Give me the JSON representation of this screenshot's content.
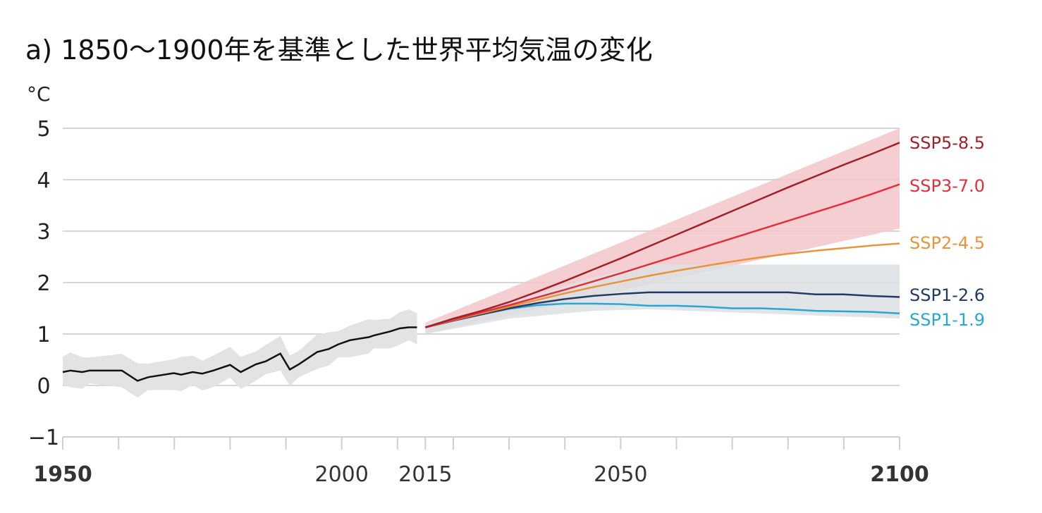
{
  "chart_data": {
    "type": "line",
    "title": "a) 1850～1900年を基準とした世界平均気温の変化",
    "ylabel": "°C",
    "xlabel": "",
    "xlim": [
      1950,
      2100
    ],
    "ylim": [
      -1,
      5
    ],
    "yticks": [
      -1,
      0,
      1,
      2,
      3,
      4,
      5
    ],
    "ytick_labels": [
      "−1",
      "0",
      "1",
      "2",
      "3",
      "4",
      "5"
    ],
    "xticks_labeled": [
      1950,
      2000,
      2015,
      2050,
      2100
    ],
    "xticks_minor": [
      1960,
      1970,
      1980,
      1990,
      2010,
      2020,
      2030,
      2040,
      2060,
      2070,
      2080,
      2090
    ],
    "grid": true,
    "historical": {
      "color": "#111111",
      "band_color": "#e3e3e3",
      "x": [
        1950,
        1951.4,
        1953.5,
        1954.8,
        1960.6,
        1963.4,
        1965.3,
        1969.9,
        1971.2,
        1973.3,
        1975,
        1977,
        1980,
        1981.9,
        1984.6,
        1986.4,
        1989,
        1990.7,
        1992.3,
        1995.6,
        1997.7,
        1999.4,
        2001.5,
        2004.9,
        2005.7,
        2008.7,
        2010.4,
        2012,
        2013.5
      ],
      "y": [
        0.26,
        0.29,
        0.26,
        0.29,
        0.29,
        0.09,
        0.16,
        0.24,
        0.21,
        0.26,
        0.23,
        0.29,
        0.4,
        0.26,
        0.41,
        0.47,
        0.62,
        0.31,
        0.41,
        0.65,
        0.71,
        0.8,
        0.88,
        0.94,
        0.97,
        1.05,
        1.11,
        1.13,
        1.13
      ],
      "band_halfwidth": 0.3
    },
    "projection_x": [
      2015,
      2020,
      2025,
      2030,
      2035,
      2040,
      2045,
      2050,
      2055,
      2060,
      2065,
      2070,
      2075,
      2080,
      2085,
      2090,
      2095,
      2100
    ],
    "series": [
      {
        "name": "SSP5-8.5",
        "color": "#a3202a",
        "values": [
          1.13,
          1.3,
          1.45,
          1.62,
          1.82,
          2.03,
          2.25,
          2.47,
          2.7,
          2.93,
          3.16,
          3.39,
          3.62,
          3.85,
          4.07,
          4.29,
          4.5,
          4.72
        ]
      },
      {
        "name": "SSP3-7.0",
        "color": "#e0303a",
        "values": [
          1.13,
          1.28,
          1.42,
          1.56,
          1.71,
          1.86,
          2.02,
          2.18,
          2.35,
          2.52,
          2.69,
          2.86,
          3.03,
          3.2,
          3.37,
          3.54,
          3.72,
          3.91
        ]
      },
      {
        "name": "SSP2-4.5",
        "color": "#e8943a",
        "values": [
          1.13,
          1.27,
          1.4,
          1.53,
          1.66,
          1.79,
          1.91,
          2.02,
          2.13,
          2.23,
          2.32,
          2.41,
          2.49,
          2.56,
          2.62,
          2.67,
          2.72,
          2.76
        ]
      },
      {
        "name": "SSP1-2.6",
        "color": "#233a63",
        "values": [
          1.13,
          1.26,
          1.38,
          1.5,
          1.6,
          1.68,
          1.74,
          1.78,
          1.81,
          1.81,
          1.81,
          1.81,
          1.81,
          1.81,
          1.77,
          1.77,
          1.74,
          1.72
        ]
      },
      {
        "name": "SSP1-1.9",
        "color": "#2aa6d0",
        "values": [
          1.13,
          1.26,
          1.38,
          1.49,
          1.56,
          1.59,
          1.59,
          1.58,
          1.55,
          1.55,
          1.53,
          1.5,
          1.5,
          1.48,
          1.45,
          1.44,
          1.43,
          1.4
        ]
      }
    ],
    "bands": [
      {
        "color": "#f3c6ca",
        "x": [
          2015,
          2100
        ],
        "low": [
          1.0,
          3.05
        ],
        "high": [
          1.22,
          5.0
        ]
      },
      {
        "color": "#dde0e4",
        "x": [
          2015,
          2030,
          2045,
          2055,
          2100
        ],
        "low": [
          1.0,
          1.3,
          1.45,
          1.48,
          1.3
        ],
        "high": [
          1.2,
          1.6,
          2.1,
          2.35,
          2.35
        ]
      }
    ]
  }
}
